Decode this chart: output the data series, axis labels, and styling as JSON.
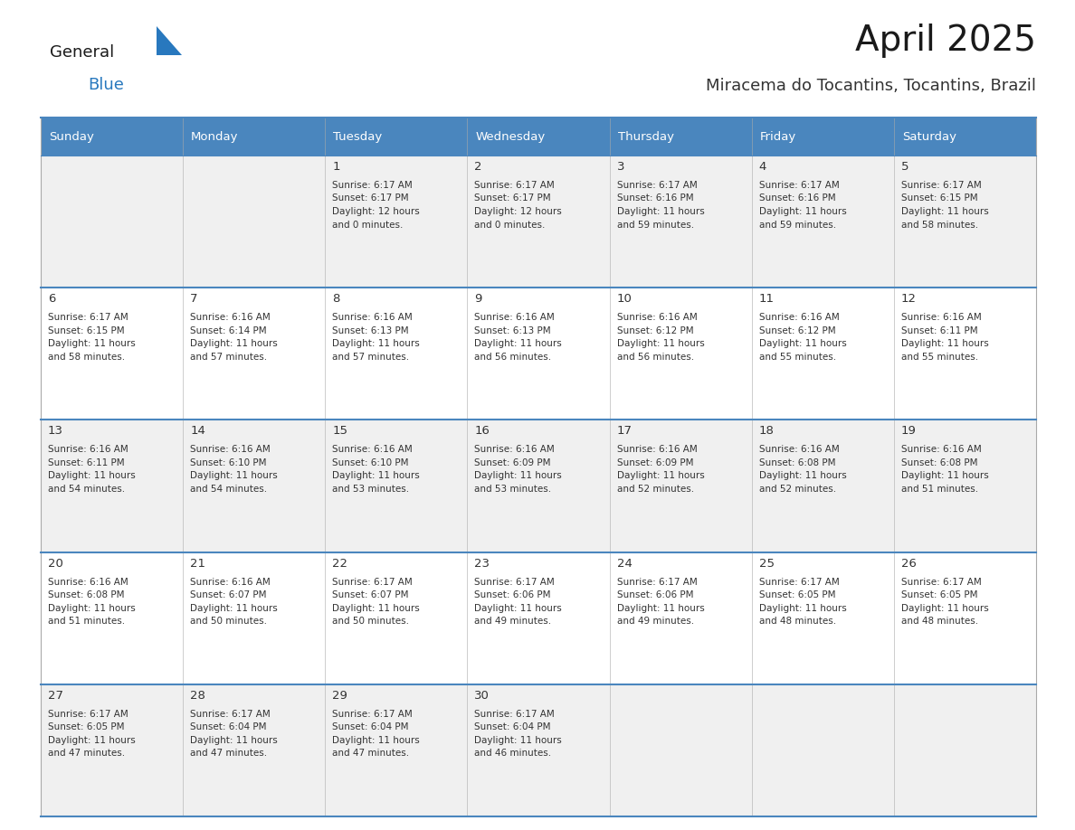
{
  "title": "April 2025",
  "subtitle": "Miracema do Tocantins, Tocantins, Brazil",
  "days_of_week": [
    "Sunday",
    "Monday",
    "Tuesday",
    "Wednesday",
    "Thursday",
    "Friday",
    "Saturday"
  ],
  "header_bg_color": "#4A86BE",
  "header_text_color": "#FFFFFF",
  "row_bg_odd": "#F0F0F0",
  "row_bg_even": "#FFFFFF",
  "day_number_color": "#333333",
  "info_text_color": "#333333",
  "border_color": "#4A86BE",
  "title_color": "#1a1a1a",
  "subtitle_color": "#333333",
  "logo_general_color": "#1a1a1a",
  "logo_blue_color": "#2878BE",
  "calendar_data": [
    {
      "day": 1,
      "col": 2,
      "row": 0,
      "sunrise": "6:17 AM",
      "sunset": "6:17 PM",
      "daylight_hours": 12,
      "daylight_minutes": 0
    },
    {
      "day": 2,
      "col": 3,
      "row": 0,
      "sunrise": "6:17 AM",
      "sunset": "6:17 PM",
      "daylight_hours": 12,
      "daylight_minutes": 0
    },
    {
      "day": 3,
      "col": 4,
      "row": 0,
      "sunrise": "6:17 AM",
      "sunset": "6:16 PM",
      "daylight_hours": 11,
      "daylight_minutes": 59
    },
    {
      "day": 4,
      "col": 5,
      "row": 0,
      "sunrise": "6:17 AM",
      "sunset": "6:16 PM",
      "daylight_hours": 11,
      "daylight_minutes": 59
    },
    {
      "day": 5,
      "col": 6,
      "row": 0,
      "sunrise": "6:17 AM",
      "sunset": "6:15 PM",
      "daylight_hours": 11,
      "daylight_minutes": 58
    },
    {
      "day": 6,
      "col": 0,
      "row": 1,
      "sunrise": "6:17 AM",
      "sunset": "6:15 PM",
      "daylight_hours": 11,
      "daylight_minutes": 58
    },
    {
      "day": 7,
      "col": 1,
      "row": 1,
      "sunrise": "6:16 AM",
      "sunset": "6:14 PM",
      "daylight_hours": 11,
      "daylight_minutes": 57
    },
    {
      "day": 8,
      "col": 2,
      "row": 1,
      "sunrise": "6:16 AM",
      "sunset": "6:13 PM",
      "daylight_hours": 11,
      "daylight_minutes": 57
    },
    {
      "day": 9,
      "col": 3,
      "row": 1,
      "sunrise": "6:16 AM",
      "sunset": "6:13 PM",
      "daylight_hours": 11,
      "daylight_minutes": 56
    },
    {
      "day": 10,
      "col": 4,
      "row": 1,
      "sunrise": "6:16 AM",
      "sunset": "6:12 PM",
      "daylight_hours": 11,
      "daylight_minutes": 56
    },
    {
      "day": 11,
      "col": 5,
      "row": 1,
      "sunrise": "6:16 AM",
      "sunset": "6:12 PM",
      "daylight_hours": 11,
      "daylight_minutes": 55
    },
    {
      "day": 12,
      "col": 6,
      "row": 1,
      "sunrise": "6:16 AM",
      "sunset": "6:11 PM",
      "daylight_hours": 11,
      "daylight_minutes": 55
    },
    {
      "day": 13,
      "col": 0,
      "row": 2,
      "sunrise": "6:16 AM",
      "sunset": "6:11 PM",
      "daylight_hours": 11,
      "daylight_minutes": 54
    },
    {
      "day": 14,
      "col": 1,
      "row": 2,
      "sunrise": "6:16 AM",
      "sunset": "6:10 PM",
      "daylight_hours": 11,
      "daylight_minutes": 54
    },
    {
      "day": 15,
      "col": 2,
      "row": 2,
      "sunrise": "6:16 AM",
      "sunset": "6:10 PM",
      "daylight_hours": 11,
      "daylight_minutes": 53
    },
    {
      "day": 16,
      "col": 3,
      "row": 2,
      "sunrise": "6:16 AM",
      "sunset": "6:09 PM",
      "daylight_hours": 11,
      "daylight_minutes": 53
    },
    {
      "day": 17,
      "col": 4,
      "row": 2,
      "sunrise": "6:16 AM",
      "sunset": "6:09 PM",
      "daylight_hours": 11,
      "daylight_minutes": 52
    },
    {
      "day": 18,
      "col": 5,
      "row": 2,
      "sunrise": "6:16 AM",
      "sunset": "6:08 PM",
      "daylight_hours": 11,
      "daylight_minutes": 52
    },
    {
      "day": 19,
      "col": 6,
      "row": 2,
      "sunrise": "6:16 AM",
      "sunset": "6:08 PM",
      "daylight_hours": 11,
      "daylight_minutes": 51
    },
    {
      "day": 20,
      "col": 0,
      "row": 3,
      "sunrise": "6:16 AM",
      "sunset": "6:08 PM",
      "daylight_hours": 11,
      "daylight_minutes": 51
    },
    {
      "day": 21,
      "col": 1,
      "row": 3,
      "sunrise": "6:16 AM",
      "sunset": "6:07 PM",
      "daylight_hours": 11,
      "daylight_minutes": 50
    },
    {
      "day": 22,
      "col": 2,
      "row": 3,
      "sunrise": "6:17 AM",
      "sunset": "6:07 PM",
      "daylight_hours": 11,
      "daylight_minutes": 50
    },
    {
      "day": 23,
      "col": 3,
      "row": 3,
      "sunrise": "6:17 AM",
      "sunset": "6:06 PM",
      "daylight_hours": 11,
      "daylight_minutes": 49
    },
    {
      "day": 24,
      "col": 4,
      "row": 3,
      "sunrise": "6:17 AM",
      "sunset": "6:06 PM",
      "daylight_hours": 11,
      "daylight_minutes": 49
    },
    {
      "day": 25,
      "col": 5,
      "row": 3,
      "sunrise": "6:17 AM",
      "sunset": "6:05 PM",
      "daylight_hours": 11,
      "daylight_minutes": 48
    },
    {
      "day": 26,
      "col": 6,
      "row": 3,
      "sunrise": "6:17 AM",
      "sunset": "6:05 PM",
      "daylight_hours": 11,
      "daylight_minutes": 48
    },
    {
      "day": 27,
      "col": 0,
      "row": 4,
      "sunrise": "6:17 AM",
      "sunset": "6:05 PM",
      "daylight_hours": 11,
      "daylight_minutes": 47
    },
    {
      "day": 28,
      "col": 1,
      "row": 4,
      "sunrise": "6:17 AM",
      "sunset": "6:04 PM",
      "daylight_hours": 11,
      "daylight_minutes": 47
    },
    {
      "day": 29,
      "col": 2,
      "row": 4,
      "sunrise": "6:17 AM",
      "sunset": "6:04 PM",
      "daylight_hours": 11,
      "daylight_minutes": 47
    },
    {
      "day": 30,
      "col": 3,
      "row": 4,
      "sunrise": "6:17 AM",
      "sunset": "6:04 PM",
      "daylight_hours": 11,
      "daylight_minutes": 46
    }
  ]
}
